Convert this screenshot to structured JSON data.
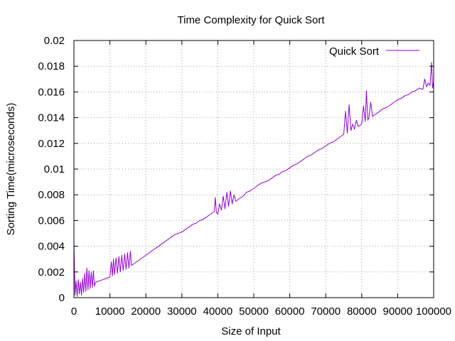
{
  "chart_data": {
    "type": "line",
    "title": "Time Complexity for Quick Sort",
    "xlabel": "Size of Input",
    "ylabel": "Sorting Time(microseconds)",
    "xlim": [
      0,
      100000
    ],
    "ylim": [
      0,
      0.02
    ],
    "grid": true,
    "legend_position": "top-right",
    "x_ticks": [
      "0",
      "10000",
      "20000",
      "30000",
      "40000",
      "50000",
      "60000",
      "70000",
      "80000",
      "90000",
      "100000"
    ],
    "y_ticks": [
      "0",
      "0.002",
      "0.004",
      "0.006",
      "0.008",
      "0.01",
      "0.012",
      "0.014",
      "0.016",
      "0.018",
      "0.02"
    ],
    "series": [
      {
        "name": "Quick Sort",
        "color": "#9400d3",
        "points": [
          [
            0,
            0.0044
          ],
          [
            300,
            0.0002
          ],
          [
            600,
            0.0013
          ],
          [
            900,
            0.0001
          ],
          [
            1200,
            0.0014
          ],
          [
            1500,
            0.0003
          ],
          [
            1800,
            0.0012
          ],
          [
            2100,
            0.0002
          ],
          [
            2400,
            0.0015
          ],
          [
            2700,
            0.0004
          ],
          [
            3000,
            0.0019
          ],
          [
            3300,
            0.0005
          ],
          [
            3600,
            0.0023
          ],
          [
            3900,
            0.0006
          ],
          [
            4200,
            0.0021
          ],
          [
            4500,
            0.0007
          ],
          [
            4800,
            0.002
          ],
          [
            5100,
            0.0008
          ],
          [
            5400,
            0.0021
          ],
          [
            5700,
            0.0009
          ],
          [
            6000,
            0.0012
          ],
          [
            7000,
            0.0013
          ],
          [
            8000,
            0.0014
          ],
          [
            9000,
            0.0015
          ],
          [
            10000,
            0.0016
          ],
          [
            10400,
            0.0028
          ],
          [
            10700,
            0.0017
          ],
          [
            11000,
            0.003
          ],
          [
            11300,
            0.0018
          ],
          [
            11700,
            0.0031
          ],
          [
            12100,
            0.0019
          ],
          [
            12500,
            0.0032
          ],
          [
            12900,
            0.002
          ],
          [
            13300,
            0.0033
          ],
          [
            13700,
            0.0021
          ],
          [
            14100,
            0.0034
          ],
          [
            14500,
            0.0022
          ],
          [
            14900,
            0.0035
          ],
          [
            15300,
            0.0023
          ],
          [
            15700,
            0.0036
          ],
          [
            16000,
            0.0025
          ],
          [
            17000,
            0.0027
          ],
          [
            18000,
            0.0029
          ],
          [
            19000,
            0.0031
          ],
          [
            20000,
            0.0033
          ],
          [
            21000,
            0.0035
          ],
          [
            22000,
            0.0037
          ],
          [
            23000,
            0.0039
          ],
          [
            24000,
            0.0041
          ],
          [
            25000,
            0.0043
          ],
          [
            26000,
            0.0045
          ],
          [
            27000,
            0.0047
          ],
          [
            28000,
            0.0049
          ],
          [
            29000,
            0.005
          ],
          [
            30000,
            0.0051
          ],
          [
            31000,
            0.0053
          ],
          [
            32000,
            0.0055
          ],
          [
            33000,
            0.0057
          ],
          [
            34000,
            0.0058
          ],
          [
            35000,
            0.006
          ],
          [
            36000,
            0.0061
          ],
          [
            37000,
            0.0063
          ],
          [
            38000,
            0.0065
          ],
          [
            39000,
            0.0067
          ],
          [
            39300,
            0.0078
          ],
          [
            39600,
            0.0066
          ],
          [
            40000,
            0.0065
          ],
          [
            40500,
            0.0073
          ],
          [
            41000,
            0.0068
          ],
          [
            41500,
            0.0079
          ],
          [
            42000,
            0.0069
          ],
          [
            42500,
            0.0082
          ],
          [
            43000,
            0.0071
          ],
          [
            43500,
            0.0083
          ],
          [
            44000,
            0.0073
          ],
          [
            44500,
            0.008
          ],
          [
            45000,
            0.0075
          ],
          [
            46000,
            0.0077
          ],
          [
            47000,
            0.0079
          ],
          [
            48000,
            0.0082
          ],
          [
            49000,
            0.0083
          ],
          [
            50000,
            0.0085
          ],
          [
            51000,
            0.0087
          ],
          [
            52000,
            0.0089
          ],
          [
            53000,
            0.009
          ],
          [
            54000,
            0.0091
          ],
          [
            55000,
            0.0093
          ],
          [
            56000,
            0.0095
          ],
          [
            57000,
            0.0096
          ],
          [
            58000,
            0.0098
          ],
          [
            59000,
            0.0099
          ],
          [
            60000,
            0.0101
          ],
          [
            61000,
            0.0103
          ],
          [
            62000,
            0.0104
          ],
          [
            63000,
            0.0106
          ],
          [
            64000,
            0.0108
          ],
          [
            65000,
            0.011
          ],
          [
            66000,
            0.0111
          ],
          [
            67000,
            0.0113
          ],
          [
            68000,
            0.0115
          ],
          [
            69000,
            0.0116
          ],
          [
            70000,
            0.0118
          ],
          [
            71000,
            0.012
          ],
          [
            72000,
            0.0121
          ],
          [
            73000,
            0.0123
          ],
          [
            74000,
            0.0125
          ],
          [
            75000,
            0.0127
          ],
          [
            75500,
            0.0145
          ],
          [
            76000,
            0.0128
          ],
          [
            76500,
            0.015
          ],
          [
            77000,
            0.013
          ],
          [
            77500,
            0.0135
          ],
          [
            78000,
            0.0131
          ],
          [
            78500,
            0.0138
          ],
          [
            79000,
            0.0133
          ],
          [
            80000,
            0.0135
          ],
          [
            80500,
            0.0149
          ],
          [
            81000,
            0.0137
          ],
          [
            81300,
            0.0161
          ],
          [
            81700,
            0.0138
          ],
          [
            82000,
            0.014
          ],
          [
            82500,
            0.0152
          ],
          [
            83000,
            0.0141
          ],
          [
            84000,
            0.0143
          ],
          [
            85000,
            0.0145
          ],
          [
            86000,
            0.0147
          ],
          [
            87000,
            0.0148
          ],
          [
            88000,
            0.015
          ],
          [
            89000,
            0.0152
          ],
          [
            90000,
            0.0154
          ],
          [
            91000,
            0.0155
          ],
          [
            92000,
            0.0157
          ],
          [
            93000,
            0.0158
          ],
          [
            94000,
            0.016
          ],
          [
            95000,
            0.0161
          ],
          [
            96000,
            0.0163
          ],
          [
            97000,
            0.0162
          ],
          [
            97500,
            0.017
          ],
          [
            98000,
            0.0164
          ],
          [
            98500,
            0.0167
          ],
          [
            99000,
            0.0165
          ],
          [
            99400,
            0.0183
          ],
          [
            99700,
            0.0163
          ],
          [
            100000,
            0.0168
          ]
        ]
      }
    ]
  }
}
